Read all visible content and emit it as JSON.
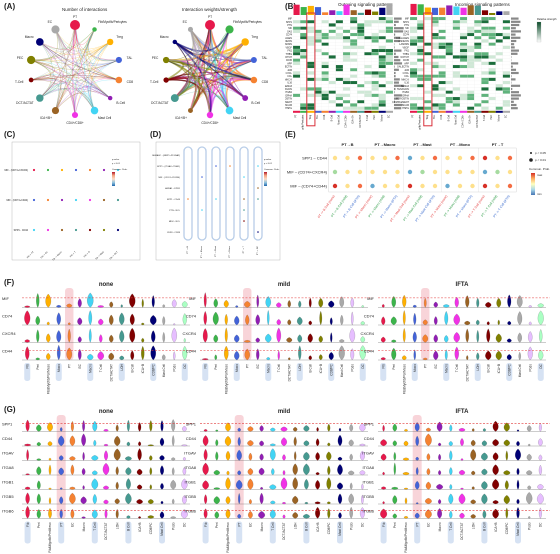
{
  "panels": {
    "A": {
      "label": "(A)",
      "left_title": "Number of interactions",
      "right_title": "Interaction weights/strength",
      "nodes": [
        "PT",
        "Fib/Myofib/Pericytes",
        "Treg",
        "TAL",
        "CD8",
        "B-Cell",
        "Mast Cell",
        "CD4+/CD8+",
        "ICA+/B+",
        "DCT/ACTAT",
        "T-Cell",
        "PEC",
        "Macro",
        "EC"
      ]
    },
    "B": {
      "label": "(B)",
      "left_title": "Outgoing signaling patterns",
      "right_title": "Incoming signaling patterns",
      "legend_title": "Relative strength",
      "pathways": [
        "MIF",
        "SPP1",
        "PTN",
        "MK",
        "GAS",
        "CD74",
        "COLLAGEN",
        "ANNEXIN",
        "LAMININ",
        "VEGF",
        "FN1",
        "THBS",
        "NOTCH",
        "CD45",
        "APP",
        "GALECTIN",
        "JAM",
        "CXCL",
        "CCL",
        "MHC-II",
        "IL16",
        "SEMA3",
        "TENASCIN",
        "ITGB2",
        "EPHA",
        "PERIOSTIN",
        "COMPLEMENT",
        "NCAM",
        "HSPG"
      ]
    },
    "C": {
      "label": "(C)",
      "legend": [
        "p-value",
        "p < 0.01",
        "Commun. Prob.",
        "max",
        "min"
      ],
      "rows": [
        "MIF - (CD74+CXCR4)",
        "MIF - (CD74+CD44)",
        "SPP1 - CD44"
      ],
      "cols": [
        "Fib -> PT",
        "Fib -> EC",
        "Fib -> Macro",
        "Fib -> T",
        "Fib -> B",
        "Fib -> Mast",
        "Fib -> DCT"
      ]
    },
    "D": {
      "label": "(D)",
      "rows": [
        "SEMA3C - (NRP1+PLXNA2)",
        "SPP1 - (ITGAV+ITGB1)",
        "MIF - (CD74+CXCR4)",
        "ANXA1 - FPR1",
        "SPP1 - CD44",
        "PTN - NCL",
        "MDK - NCL",
        "CD99 - CD99"
      ],
      "legend": [
        "p-value",
        "p < 0.01",
        "Commun. Prob."
      ]
    },
    "E": {
      "label": "(E)",
      "groups": [
        "PT→B",
        "PT→Macro",
        "PT→Mast",
        "PT→Mono",
        "PT→T"
      ],
      "rows": [
        "SPP1 – CD44",
        "MIF – (CD74+CXCR4)",
        "MIF – (CD74+CD44)"
      ],
      "cols": [
        "PT -> B Cell (none)",
        "PT -> B Cell (mild)",
        "PT -> B Cell (IFTA)",
        "PT -> Macro (none)",
        "PT -> Macro (mild)",
        "PT -> Macro (IFTA)",
        "PT -> Mast Cell (none)",
        "PT -> Mast Cell (mild)",
        "PT -> Mast Cell (IFTA)",
        "PT -> Mono (none)",
        "PT -> Mono (mild)",
        "PT -> Mono (IFTA)",
        "PT -> T Cell (none)",
        "PT -> T Cell (mild)",
        "PT -> T Cell (IFTA)"
      ],
      "pvalue_legend": [
        "p < 0.05",
        "p < 0.01"
      ],
      "colorbar_title": "Commun. Prob.",
      "colorbar_ends": [
        "max",
        "min"
      ]
    },
    "F": {
      "label": "(F)",
      "conditions": [
        "none",
        "mild",
        "IFTA"
      ],
      "genes": [
        "MIF",
        "CD74",
        "CXCR4",
        "CD44"
      ],
      "celltypes": [
        "Fib",
        "Peri",
        "Fib&Myofib/PeriMeso",
        "Mono",
        "PT",
        "EC",
        "Macro",
        "T Cell",
        "DCT/ACTAT",
        "LOH",
        "B Cell",
        "ICA+B",
        "CD8/PC",
        "Mast Cell",
        "Podo",
        "DC"
      ]
    },
    "G": {
      "label": "(G)",
      "conditions": [
        "none",
        "mild",
        "IFTA"
      ],
      "genes": [
        "SPP1",
        "CD44",
        "ITGAV",
        "ITGA8",
        "ITGB1",
        "ITGB5",
        "ITGB6"
      ],
      "celltypes": [
        "Fib",
        "Peri",
        "Fib&Myofib/PeriMeso",
        "PT",
        "EC",
        "Macro",
        "T Cell",
        "DCT/ACTAT",
        "LOH",
        "B Cell",
        "ICA+B",
        "CD8/PC",
        "Mast Cell",
        "Podo",
        "DC"
      ]
    }
  },
  "colors": {
    "highlight": "#f4b8c0",
    "frame_red": "#d9303a",
    "dashed_red": "#e23a3a",
    "capsule_blue": "#b8cde8",
    "heat_green": "#2e8b57"
  }
}
